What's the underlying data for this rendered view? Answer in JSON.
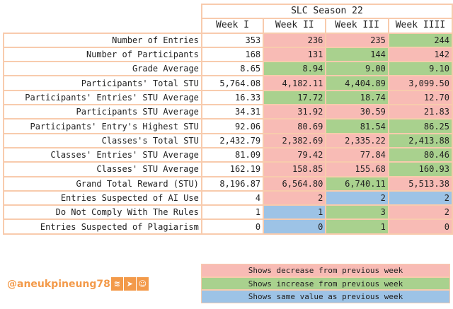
{
  "title": "SLC Season 22",
  "weeks": [
    "Week I",
    "Week II",
    "Week III",
    "Week IIII"
  ],
  "rows": [
    {
      "label": "Number of Entries",
      "values": [
        "353",
        "236",
        "235",
        "244"
      ],
      "trend": [
        "w",
        "r",
        "r",
        "g"
      ]
    },
    {
      "label": "Number of Participants",
      "values": [
        "168",
        "131",
        "144",
        "142"
      ],
      "trend": [
        "w",
        "r",
        "g",
        "r"
      ]
    },
    {
      "label": "Grade Average",
      "values": [
        "8.65",
        "8.94",
        "9.00",
        "9.10"
      ],
      "trend": [
        "w",
        "g",
        "g",
        "g"
      ]
    },
    {
      "label": "Participants' Total STU",
      "values": [
        "5,764.08",
        "4,182.11",
        "4,404.89",
        "3,099.50"
      ],
      "trend": [
        "w",
        "r",
        "g",
        "r"
      ]
    },
    {
      "label": "Participants' Entries' STU Average",
      "values": [
        "16.33",
        "17.72",
        "18.74",
        "12.70"
      ],
      "trend": [
        "w",
        "g",
        "g",
        "r"
      ]
    },
    {
      "label": "Participants STU Average",
      "values": [
        "34.31",
        "31.92",
        "30.59",
        "21.83"
      ],
      "trend": [
        "w",
        "r",
        "r",
        "r"
      ]
    },
    {
      "label": "Participants' Entry's Highest STU",
      "values": [
        "92.06",
        "80.69",
        "81.54",
        "86.25"
      ],
      "trend": [
        "w",
        "r",
        "g",
        "g"
      ]
    },
    {
      "label": "Classes's Total STU",
      "values": [
        "2,432.79",
        "2,382.69",
        "2,335.22",
        "2,413.88"
      ],
      "trend": [
        "w",
        "r",
        "r",
        "g"
      ]
    },
    {
      "label": "Classes' Entries' STU Average",
      "values": [
        "81.09",
        "79.42",
        "77.84",
        "80.46"
      ],
      "trend": [
        "w",
        "r",
        "r",
        "g"
      ]
    },
    {
      "label": "Classes' STU Average",
      "values": [
        "162.19",
        "158.85",
        "155.68",
        "160.93"
      ],
      "trend": [
        "w",
        "r",
        "r",
        "g"
      ]
    },
    {
      "label": "Grand Total Reward (STU)",
      "values": [
        "8,196.87",
        "6,564.80",
        "6,740.11",
        "5,513.38"
      ],
      "trend": [
        "w",
        "r",
        "g",
        "r"
      ]
    },
    {
      "label": "Entries Suspected of AI Use",
      "values": [
        "4",
        "2",
        "2",
        "2"
      ],
      "trend": [
        "w",
        "r",
        "b",
        "b"
      ]
    },
    {
      "label": "Do Not Comply With The Rules",
      "values": [
        "1",
        "1",
        "3",
        "2"
      ],
      "trend": [
        "w",
        "b",
        "g",
        "r"
      ]
    },
    {
      "label": "Entries Suspected of Plagiarism",
      "values": [
        "0",
        "0",
        "1",
        "0"
      ],
      "trend": [
        "w",
        "b",
        "g",
        "r"
      ]
    }
  ],
  "legend": {
    "decrease": "Shows decrease from previous week",
    "increase": "Shows increase from previous week",
    "same": "Shows same value as previous week"
  },
  "colors": {
    "decrease": "#f8bbb5",
    "increase": "#a9d18e",
    "same": "#9dc3e6",
    "border": "#f8cbad",
    "accent": "#f39a4a"
  },
  "author": {
    "handle": "@aneukpineung78",
    "icons": [
      "steem-icon",
      "telegram-icon",
      "discord-icon"
    ]
  }
}
